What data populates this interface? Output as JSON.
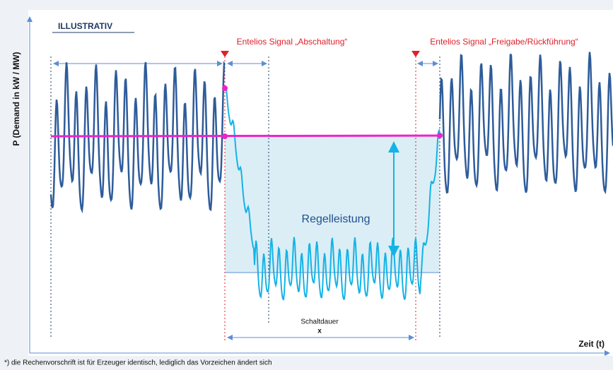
{
  "header": {
    "label": "ILLUSTRATIV"
  },
  "signals": [
    {
      "label": "Entelios Signal „Abschaltung“"
    },
    {
      "label": "Entelios Signal „Freigabe/Rückführung“"
    }
  ],
  "axes": {
    "y_label": "P (Demand in kW / MW)",
    "x_label": "Zeit (t)"
  },
  "region": {
    "label": "Regelleistung"
  },
  "duration": {
    "label": "Schaltdauer",
    "symbol": "x"
  },
  "footnote": "*) die Rechenvorschrift ist für Erzeuger identisch, lediglich das Vorzeichen ändert sich"
}
